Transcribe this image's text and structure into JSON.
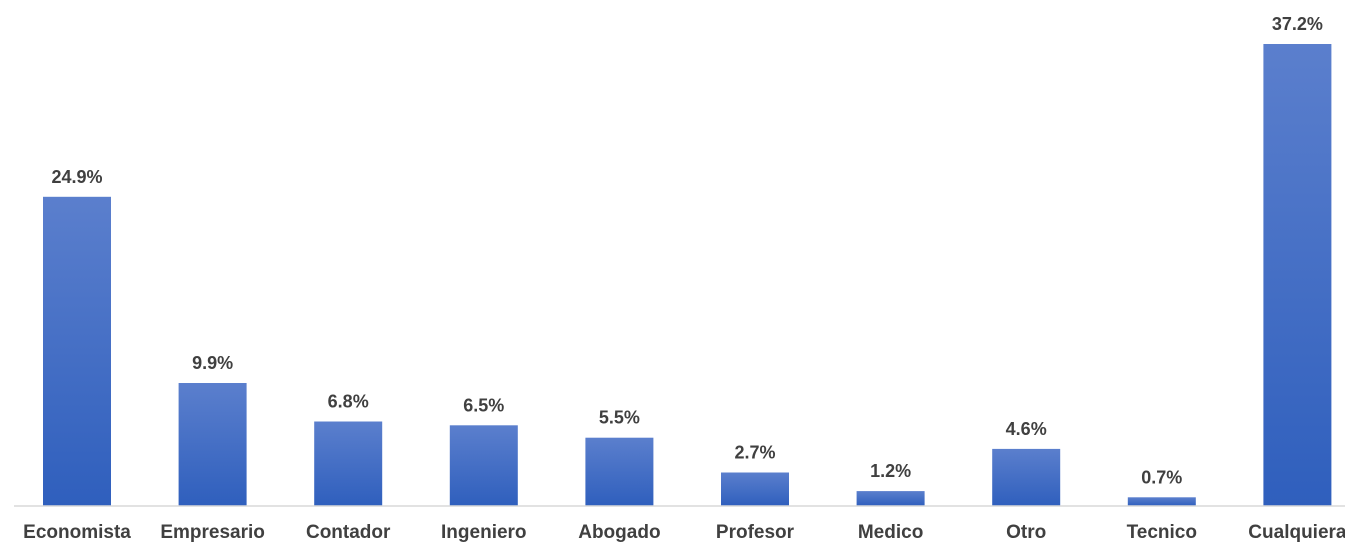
{
  "chart_data": {
    "type": "bar",
    "title": "",
    "xlabel": "",
    "ylabel": "",
    "categories": [
      "Economista",
      "Empresario",
      "Contador",
      "Ingeniero",
      "Abogado",
      "Profesor",
      "Medico",
      "Otro",
      "Tecnico",
      "Cualquiera"
    ],
    "values": [
      24.9,
      9.9,
      6.8,
      6.5,
      5.5,
      2.7,
      1.2,
      4.6,
      0.7,
      37.2
    ],
    "data_labels": [
      "24.9%",
      "9.9%",
      "6.8%",
      "6.5%",
      "5.5%",
      "2.7%",
      "1.2%",
      "4.6%",
      "0.7%",
      "37.2%"
    ],
    "unit": "%",
    "ylim": [
      0,
      37.2
    ],
    "grid": false,
    "legend": "none",
    "y_axis_visible": false
  },
  "colors": {
    "bar_top": "#5b7fcd",
    "bar_bottom": "#2f5fbd",
    "axis_line": "#d9d9d9",
    "label_text": "#404040"
  }
}
